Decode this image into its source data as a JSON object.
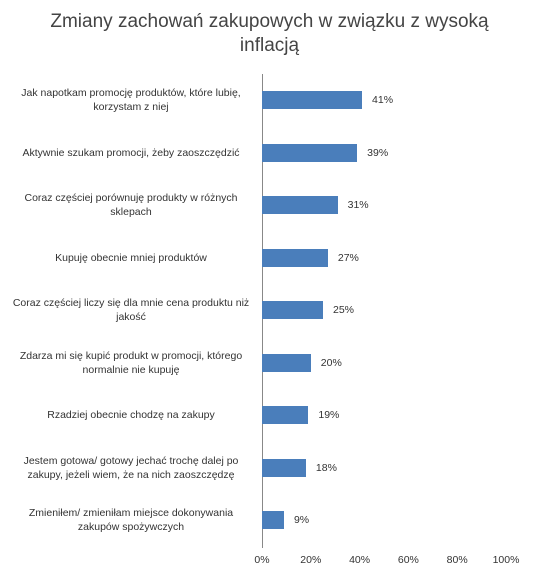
{
  "chart_data": {
    "type": "bar",
    "orientation": "horizontal",
    "title": "Zmiany zachowań zakupowych w związku z wysoką inflacją",
    "categories": [
      "Jak napotkam promocję produktów,  które lubię,\nkorzystam z niej",
      "Aktywnie szukam promocji, żeby zaoszczędzić",
      "Coraz częściej porównuję produkty  w różnych\nsklepach",
      "Kupuję obecnie mniej produktów",
      "Coraz częściej liczy się dla mnie cena produktu  niż\njakość",
      "Zdarza mi się kupić produkt  w promocji, którego\nnormalnie nie kupuję",
      "Rzadziej obecnie chodzę na zakupy",
      "Jestem gotowa/ gotowy jechać trochę dalej po\nzakupy, jeżeli wiem, że na nich zaoszczędzę",
      "Zmieniłem/ zmieniłam miejsce dokonywania\nzakupów spożywczych"
    ],
    "values": [
      41,
      39,
      31,
      27,
      25,
      20,
      19,
      18,
      9
    ],
    "value_labels": [
      "41%",
      "39%",
      "31%",
      "27%",
      "25%",
      "20%",
      "19%",
      "18%",
      "9%"
    ],
    "color": "#4a7ebb",
    "xlim": [
      0,
      100
    ],
    "xticks": [
      {
        "value": 0,
        "label": "0%"
      },
      {
        "value": 20,
        "label": "20%"
      },
      {
        "value": 40,
        "label": "40%"
      },
      {
        "value": 60,
        "label": "60%"
      },
      {
        "value": 80,
        "label": "80%"
      },
      {
        "value": 100,
        "label": "100%"
      }
    ],
    "grid": false
  }
}
